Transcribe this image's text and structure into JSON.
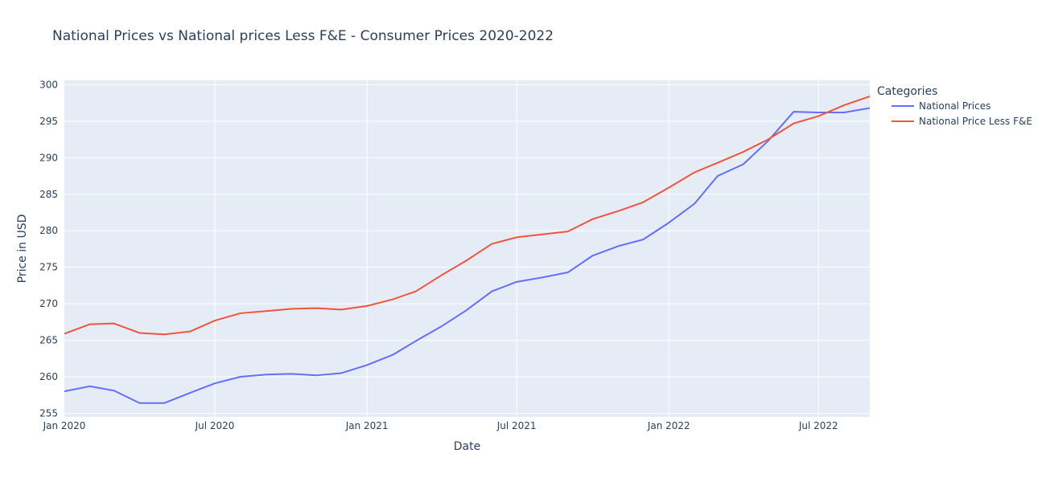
{
  "chart_data": {
    "type": "line",
    "title": "National Prices vs National prices Less F&E - Consumer Prices 2020-2022",
    "xlabel": "Date",
    "ylabel": "Price in USD",
    "legend_title": "Categories",
    "legend_position": "right",
    "grid": true,
    "xlim": [
      "2020-01-01",
      "2022-09-01"
    ],
    "ylim": [
      254.5,
      300.6
    ],
    "x_ticks": [
      {
        "date": "2020-01-01",
        "label": "Jan 2020"
      },
      {
        "date": "2020-07-01",
        "label": "Jul 2020"
      },
      {
        "date": "2021-01-01",
        "label": "Jan 2021"
      },
      {
        "date": "2021-07-01",
        "label": "Jul 2021"
      },
      {
        "date": "2022-01-01",
        "label": "Jan 2022"
      },
      {
        "date": "2022-07-01",
        "label": "Jul 2022"
      }
    ],
    "y_ticks": [
      255,
      260,
      265,
      270,
      275,
      280,
      285,
      290,
      295,
      300
    ],
    "x": [
      "2020-01-01",
      "2020-02-01",
      "2020-03-01",
      "2020-04-01",
      "2020-05-01",
      "2020-06-01",
      "2020-07-01",
      "2020-08-01",
      "2020-09-01",
      "2020-10-01",
      "2020-11-01",
      "2020-12-01",
      "2021-01-01",
      "2021-02-01",
      "2021-03-01",
      "2021-04-01",
      "2021-05-01",
      "2021-06-01",
      "2021-07-01",
      "2021-08-01",
      "2021-09-01",
      "2021-10-01",
      "2021-11-01",
      "2021-12-01",
      "2022-01-01",
      "2022-02-01",
      "2022-03-01",
      "2022-04-01",
      "2022-05-01",
      "2022-06-01",
      "2022-07-01",
      "2022-08-01",
      "2022-09-01"
    ],
    "series": [
      {
        "name": "National Prices",
        "color": "#636efa",
        "values": [
          258.0,
          258.7,
          258.1,
          256.4,
          256.4,
          257.8,
          259.1,
          260.0,
          260.3,
          260.4,
          260.2,
          260.5,
          261.6,
          263.0,
          264.9,
          266.9,
          269.1,
          271.7,
          273.0,
          273.6,
          274.3,
          276.6,
          277.9,
          278.8,
          281.1,
          283.7,
          287.5,
          289.1,
          292.3,
          296.3,
          296.2,
          296.2,
          296.8
        ]
      },
      {
        "name": "National Price Less F&E",
        "color": "#ef553b",
        "values": [
          265.9,
          267.2,
          267.3,
          266.0,
          265.8,
          266.2,
          267.7,
          268.7,
          269.0,
          269.3,
          269.4,
          269.2,
          269.7,
          270.6,
          271.7,
          273.9,
          275.9,
          278.2,
          279.1,
          279.5,
          279.9,
          281.6,
          282.7,
          283.9,
          285.9,
          288.0,
          289.3,
          290.8,
          292.5,
          294.7,
          295.7,
          297.2,
          298.4
        ]
      }
    ]
  }
}
